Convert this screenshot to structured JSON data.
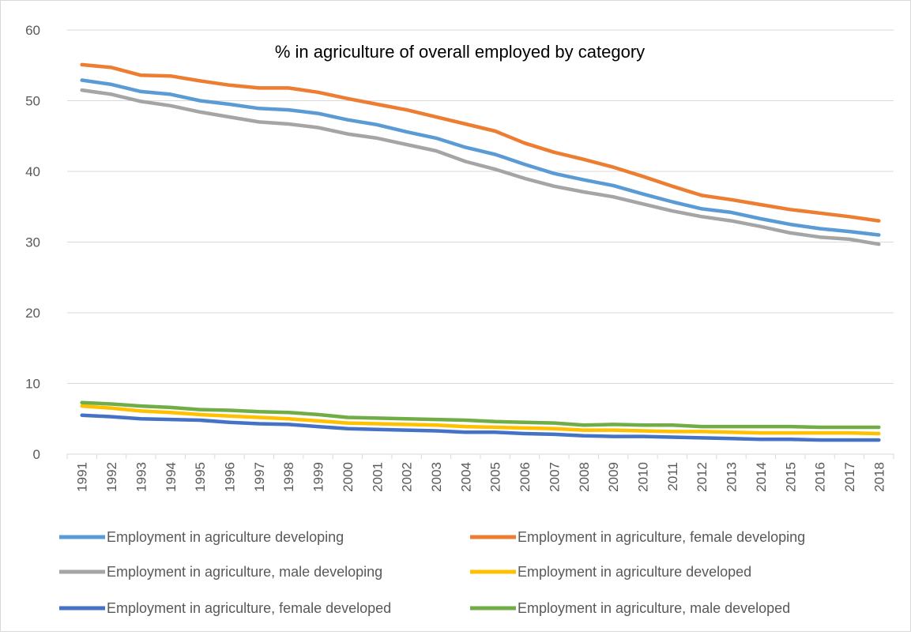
{
  "chart_data": {
    "type": "line",
    "title": "% in agriculture of overall employed by category",
    "xlabel": "",
    "ylabel": "",
    "ylim": [
      0,
      60
    ],
    "yticks": [
      0,
      10,
      20,
      30,
      40,
      50,
      60
    ],
    "grid": "horizontal",
    "legend_position": "bottom",
    "x": [
      "1991",
      "1992",
      "1993",
      "1994",
      "1995",
      "1996",
      "1997",
      "1998",
      "1999",
      "2000",
      "2001",
      "2002",
      "2003",
      "2004",
      "2005",
      "2006",
      "2007",
      "2008",
      "2009",
      "2010",
      "2011",
      "2012",
      "2013",
      "2014",
      "2015",
      "2016",
      "2017",
      "2018"
    ],
    "series": [
      {
        "name": "Employment in agriculture developing",
        "color": "#5b9bd5",
        "values": [
          52.9,
          52.3,
          51.3,
          50.9,
          50.0,
          49.5,
          48.9,
          48.7,
          48.2,
          47.3,
          46.6,
          45.6,
          44.7,
          43.4,
          42.4,
          41.0,
          39.7,
          38.8,
          38.0,
          36.8,
          35.7,
          34.7,
          34.2,
          33.3,
          32.5,
          31.9,
          31.5,
          31.0
        ]
      },
      {
        "name": "Employment in agriculture, female developing",
        "color": "#ed7d31",
        "values": [
          55.1,
          54.7,
          53.6,
          53.5,
          52.8,
          52.2,
          51.8,
          51.8,
          51.2,
          50.3,
          49.5,
          48.7,
          47.7,
          46.7,
          45.7,
          44.0,
          42.7,
          41.7,
          40.6,
          39.3,
          37.9,
          36.6,
          36.0,
          35.3,
          34.6,
          34.1,
          33.6,
          33.0
        ]
      },
      {
        "name": "Employment in agriculture, male developing",
        "color": "#a5a5a5",
        "values": [
          51.5,
          50.9,
          49.9,
          49.3,
          48.4,
          47.7,
          47.0,
          46.7,
          46.2,
          45.3,
          44.7,
          43.8,
          42.9,
          41.4,
          40.3,
          39.0,
          37.9,
          37.1,
          36.4,
          35.4,
          34.4,
          33.6,
          33.0,
          32.2,
          31.3,
          30.7,
          30.4,
          29.7
        ]
      },
      {
        "name": "Employment in agriculture developed",
        "color": "#ffc000",
        "values": [
          6.8,
          6.5,
          6.1,
          5.9,
          5.6,
          5.4,
          5.2,
          5.0,
          4.7,
          4.4,
          4.3,
          4.2,
          4.1,
          3.9,
          3.8,
          3.7,
          3.6,
          3.4,
          3.4,
          3.3,
          3.2,
          3.2,
          3.1,
          3.0,
          3.0,
          3.0,
          3.0,
          2.9
        ]
      },
      {
        "name": "Employment in agriculture, female developed",
        "color": "#4472c4",
        "values": [
          5.5,
          5.3,
          5.0,
          4.9,
          4.8,
          4.5,
          4.3,
          4.2,
          3.9,
          3.6,
          3.5,
          3.4,
          3.3,
          3.1,
          3.1,
          2.9,
          2.8,
          2.6,
          2.5,
          2.5,
          2.4,
          2.3,
          2.2,
          2.1,
          2.1,
          2.0,
          2.0,
          2.0
        ]
      },
      {
        "name": "Employment in agriculture, male developed",
        "color": "#70ad47",
        "values": [
          7.3,
          7.1,
          6.8,
          6.6,
          6.3,
          6.2,
          6.0,
          5.9,
          5.6,
          5.2,
          5.1,
          5.0,
          4.9,
          4.8,
          4.6,
          4.5,
          4.4,
          4.1,
          4.2,
          4.1,
          4.1,
          3.9,
          3.9,
          3.9,
          3.9,
          3.8,
          3.8,
          3.8
        ]
      }
    ]
  }
}
